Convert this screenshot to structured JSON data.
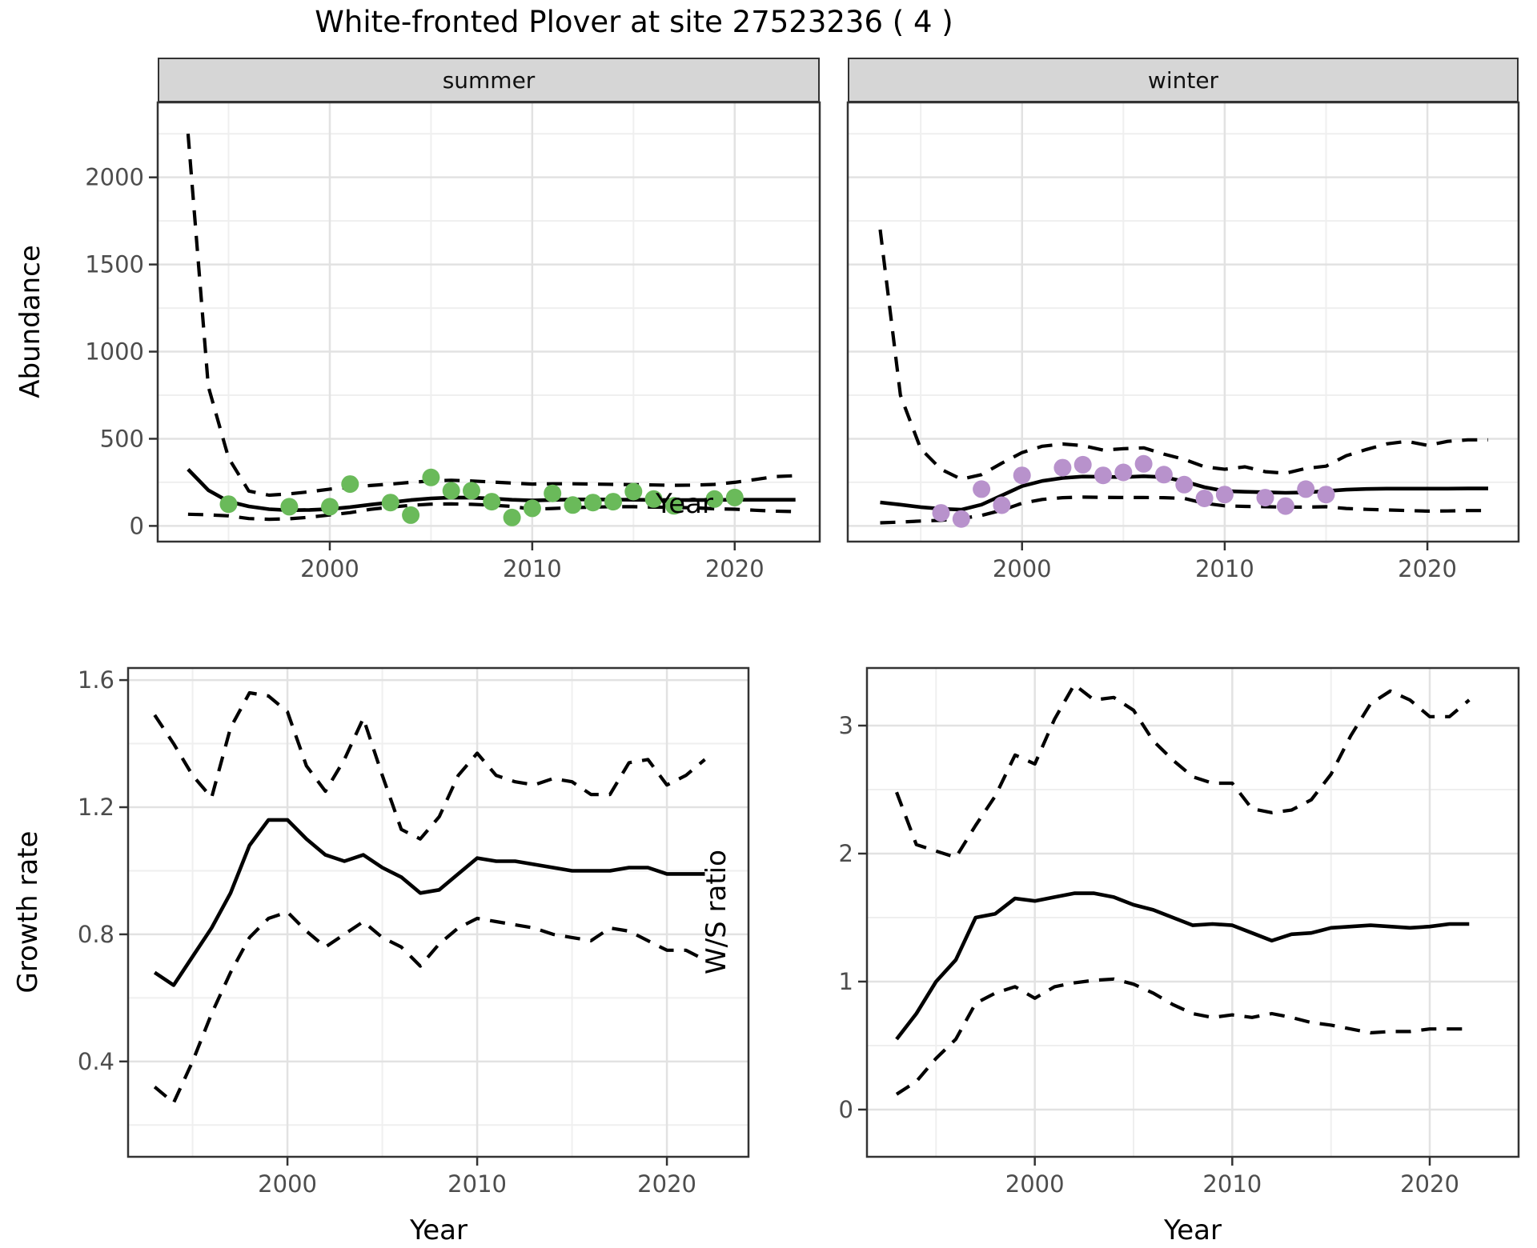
{
  "title": "White-fronted Plover at site 27523236 ( 4 )",
  "facets": [
    {
      "label": "summer"
    },
    {
      "label": "winter"
    }
  ],
  "axis_titles": {
    "abundance_y": "Abundance",
    "top_x": "Year",
    "growth_y": "Growth rate",
    "growth_x": "Year",
    "ws_y": "W/S ratio",
    "ws_x": "Year"
  },
  "colors": {
    "summer_point": "#6aba5a",
    "winter_point": "#b892cc",
    "line": "#000000",
    "grid_major": "#e2e2e2",
    "grid_minor": "#efefef",
    "panel_border": "#333333",
    "strip_bg": "#d6d6d6",
    "tick_text": "#4d4d4d"
  },
  "chart_data": [
    {
      "id": "summer",
      "type": "line",
      "facet": "summer",
      "xlabel": "Year",
      "ylabel": "Abundance",
      "x_range": [
        1991.5,
        2024.2
      ],
      "y_range": [
        -90,
        2430
      ],
      "x_ticks": [
        2000,
        2010,
        2020
      ],
      "x_minor": [
        1995,
        2005,
        2015
      ],
      "y_ticks": [
        0,
        500,
        1000,
        1500,
        2000
      ],
      "y_minor": [
        250,
        750,
        1250,
        1750,
        2250
      ],
      "show_y_labels": true,
      "years": [
        1993,
        1994,
        1995,
        1996,
        1997,
        1998,
        1999,
        2000,
        2001,
        2002,
        2003,
        2004,
        2005,
        2006,
        2007,
        2008,
        2009,
        2010,
        2011,
        2012,
        2013,
        2014,
        2015,
        2016,
        2017,
        2018,
        2019,
        2020,
        2021,
        2022,
        2023
      ],
      "series": [
        {
          "name": "mean",
          "style": "solid",
          "values": [
            325,
            205,
            140,
            112,
            96,
            90,
            92,
            97,
            108,
            122,
            135,
            148,
            158,
            163,
            162,
            157,
            150,
            146,
            149,
            152,
            152,
            151,
            150,
            149,
            148,
            148,
            149,
            150,
            150,
            150,
            150
          ]
        },
        {
          "name": "upper95",
          "style": "dashed",
          "values": [
            2250,
            800,
            390,
            200,
            176,
            184,
            196,
            211,
            221,
            232,
            240,
            250,
            258,
            262,
            258,
            252,
            246,
            240,
            242,
            242,
            240,
            238,
            237,
            235,
            233,
            234,
            238,
            250,
            266,
            283,
            288
          ]
        },
        {
          "name": "lower95",
          "style": "dashed",
          "values": [
            67,
            64,
            58,
            42,
            38,
            41,
            50,
            63,
            76,
            95,
            108,
            118,
            125,
            126,
            124,
            119,
            112,
            96,
            100,
            105,
            108,
            110,
            110,
            108,
            106,
            104,
            98,
            96,
            90,
            85,
            82
          ]
        }
      ],
      "obs_years": [
        1995,
        1998,
        2000,
        2001,
        2003,
        2004,
        2005,
        2006,
        2007,
        2008,
        2009,
        2010,
        2011,
        2012,
        2013,
        2014,
        2015,
        2016,
        2017,
        2019,
        2020
      ],
      "obs_values": [
        125,
        110,
        110,
        240,
        134,
        62,
        278,
        202,
        202,
        139,
        48,
        101,
        187,
        120,
        134,
        139,
        197,
        154,
        115,
        154,
        163
      ],
      "point_color": "#6aba5a"
    },
    {
      "id": "winter",
      "type": "line",
      "facet": "winter",
      "xlabel": "Year",
      "ylabel": "Abundance",
      "x_range": [
        1991.4,
        2024.5
      ],
      "y_range": [
        -90,
        2430
      ],
      "x_ticks": [
        2000,
        2010,
        2020
      ],
      "x_minor": [
        1995,
        2005,
        2015
      ],
      "y_ticks": [
        0,
        500,
        1000,
        1500,
        2000
      ],
      "y_minor": [
        250,
        750,
        1250,
        1750,
        2250
      ],
      "show_y_labels": false,
      "years": [
        1993,
        1994,
        1995,
        1996,
        1997,
        1998,
        1999,
        2000,
        2001,
        2002,
        2003,
        2004,
        2005,
        2006,
        2007,
        2008,
        2009,
        2010,
        2011,
        2012,
        2013,
        2014,
        2015,
        2016,
        2017,
        2018,
        2019,
        2020,
        2021,
        2022,
        2023
      ],
      "series": [
        {
          "name": "mean",
          "style": "solid",
          "values": [
            135,
            122,
            108,
            98,
            93,
            122,
            175,
            228,
            258,
            275,
            283,
            282,
            280,
            285,
            280,
            255,
            222,
            200,
            196,
            193,
            190,
            192,
            200,
            208,
            212,
            214,
            214,
            214,
            214,
            215,
            215
          ]
        },
        {
          "name": "upper95",
          "style": "dashed",
          "values": [
            1700,
            750,
            443,
            325,
            268,
            294,
            360,
            421,
            457,
            470,
            461,
            435,
            443,
            448,
            412,
            382,
            339,
            325,
            339,
            311,
            302,
            330,
            343,
            403,
            439,
            471,
            485,
            462,
            485,
            494,
            494
          ]
        },
        {
          "name": "lower95",
          "style": "dashed",
          "values": [
            18,
            22,
            28,
            32,
            42,
            60,
            90,
            130,
            152,
            162,
            165,
            164,
            163,
            163,
            162,
            158,
            130,
            115,
            112,
            110,
            108,
            108,
            110,
            100,
            95,
            92,
            88,
            85,
            86,
            88,
            88
          ]
        }
      ],
      "obs_years": [
        1996,
        1997,
        1998,
        1999,
        2000,
        2002,
        2003,
        2004,
        2005,
        2006,
        2007,
        2008,
        2009,
        2010,
        2012,
        2013,
        2014,
        2015
      ],
      "obs_values": [
        75,
        40,
        211,
        119,
        290,
        334,
        351,
        290,
        307,
        356,
        294,
        237,
        158,
        180,
        162,
        114,
        211,
        180
      ],
      "point_color": "#b892cc"
    },
    {
      "id": "growth",
      "type": "line",
      "xlabel": "Year",
      "ylabel": "Growth rate",
      "x_range": [
        1991.6,
        2024.3
      ],
      "y_range": [
        0.1,
        1.638
      ],
      "x_ticks": [
        2000,
        2010,
        2020
      ],
      "x_minor": [
        1995,
        2005,
        2015
      ],
      "y_ticks": [
        0.4,
        0.8,
        1.2,
        1.6
      ],
      "y_minor": [
        0.2,
        0.6,
        1.0,
        1.4
      ],
      "show_y_labels": true,
      "years": [
        1993,
        1994,
        1995,
        1996,
        1997,
        1998,
        1999,
        2000,
        2001,
        2002,
        2003,
        2004,
        2005,
        2006,
        2007,
        2008,
        2009,
        2010,
        2011,
        2012,
        2013,
        2014,
        2015,
        2016,
        2017,
        2018,
        2019,
        2020,
        2021,
        2022
      ],
      "series": [
        {
          "name": "mean",
          "style": "solid",
          "values": [
            0.68,
            0.64,
            0.73,
            0.82,
            0.93,
            1.08,
            1.16,
            1.16,
            1.1,
            1.05,
            1.03,
            1.05,
            1.01,
            0.98,
            0.93,
            0.94,
            0.99,
            1.04,
            1.03,
            1.03,
            1.02,
            1.01,
            1.0,
            1.0,
            1.0,
            1.01,
            1.01,
            0.99,
            0.99,
            0.99
          ]
        },
        {
          "name": "upper95",
          "style": "dashed",
          "values": [
            1.49,
            1.4,
            1.3,
            1.23,
            1.45,
            1.56,
            1.55,
            1.5,
            1.33,
            1.25,
            1.35,
            1.48,
            1.3,
            1.13,
            1.1,
            1.17,
            1.3,
            1.37,
            1.3,
            1.28,
            1.27,
            1.29,
            1.28,
            1.24,
            1.24,
            1.34,
            1.35,
            1.27,
            1.3,
            1.35
          ]
        },
        {
          "name": "lower95",
          "style": "dashed",
          "values": [
            0.32,
            0.27,
            0.4,
            0.55,
            0.68,
            0.79,
            0.85,
            0.87,
            0.81,
            0.76,
            0.8,
            0.84,
            0.79,
            0.76,
            0.7,
            0.77,
            0.82,
            0.85,
            0.84,
            0.83,
            0.82,
            0.8,
            0.79,
            0.78,
            0.82,
            0.81,
            0.78,
            0.75,
            0.75,
            0.72
          ]
        }
      ],
      "obs_years": [],
      "obs_values": [],
      "point_color": "#000000"
    },
    {
      "id": "ws",
      "type": "line",
      "xlabel": "Year",
      "ylabel": "W/S ratio",
      "x_range": [
        1991.5,
        2024.5
      ],
      "y_range": [
        -0.369,
        3.45
      ],
      "x_ticks": [
        2000,
        2010,
        2020
      ],
      "x_minor": [
        1995,
        2005,
        2015
      ],
      "y_ticks": [
        0,
        1,
        2,
        3
      ],
      "y_minor": [
        0.5,
        1.5,
        2.5
      ],
      "show_y_labels": true,
      "years": [
        1993,
        1994,
        1995,
        1996,
        1997,
        1998,
        1999,
        2000,
        2001,
        2002,
        2003,
        2004,
        2005,
        2006,
        2007,
        2008,
        2009,
        2010,
        2011,
        2012,
        2013,
        2014,
        2015,
        2016,
        2017,
        2018,
        2019,
        2020,
        2021,
        2022
      ],
      "series": [
        {
          "name": "mean",
          "style": "solid",
          "values": [
            0.55,
            0.75,
            1.0,
            1.17,
            1.5,
            1.53,
            1.65,
            1.63,
            1.66,
            1.69,
            1.69,
            1.66,
            1.6,
            1.56,
            1.5,
            1.44,
            1.45,
            1.44,
            1.38,
            1.32,
            1.37,
            1.38,
            1.42,
            1.43,
            1.44,
            1.43,
            1.42,
            1.43,
            1.45,
            1.45
          ]
        },
        {
          "name": "upper95",
          "style": "dashed",
          "values": [
            2.48,
            2.07,
            2.02,
            1.97,
            2.22,
            2.45,
            2.77,
            2.7,
            3.05,
            3.32,
            3.2,
            3.22,
            3.12,
            2.88,
            2.73,
            2.6,
            2.55,
            2.55,
            2.35,
            2.32,
            2.34,
            2.42,
            2.62,
            2.92,
            3.17,
            3.27,
            3.2,
            3.07,
            3.07,
            3.2
          ]
        },
        {
          "name": "lower95",
          "style": "dashed",
          "values": [
            0.12,
            0.22,
            0.4,
            0.55,
            0.83,
            0.91,
            0.96,
            0.87,
            0.96,
            0.99,
            1.01,
            1.02,
            0.98,
            0.91,
            0.82,
            0.75,
            0.72,
            0.74,
            0.72,
            0.75,
            0.72,
            0.68,
            0.66,
            0.63,
            0.6,
            0.61,
            0.61,
            0.63,
            0.63,
            0.63
          ]
        }
      ],
      "obs_years": [],
      "obs_values": [],
      "point_color": "#000000"
    }
  ]
}
